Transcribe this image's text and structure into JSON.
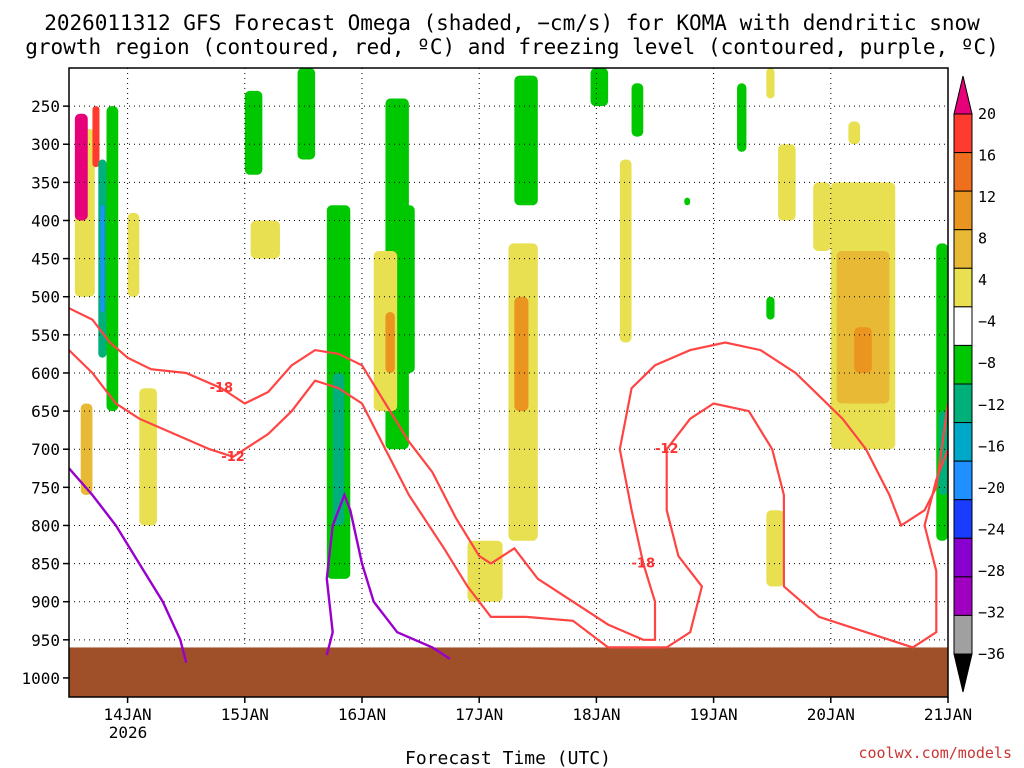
{
  "chart_data": {
    "type": "heatmap",
    "title_lines": [
      "2026011312 GFS Forecast Omega (shaded, −cm/s) for KOMA with dendritic snow",
      "growth region (contoured, red, ºC) and freezing level (contoured, purple, ºC)"
    ],
    "xlabel": "Forecast Time (UTC)",
    "x_ticks": [
      "14JAN",
      "15JAN",
      "16JAN",
      "17JAN",
      "18JAN",
      "19JAN",
      "20JAN",
      "21JAN"
    ],
    "x_year_label": "2026",
    "x_range_days": [
      13.5,
      21.0
    ],
    "y_ticks": [
      250,
      300,
      350,
      400,
      450,
      500,
      550,
      600,
      650,
      700,
      750,
      800,
      850,
      900,
      950,
      1000
    ],
    "y_range_hpa": [
      200,
      1025
    ],
    "credit": "coolwx.com/models",
    "colorbar": {
      "tick_labels": [
        "20",
        "16",
        "12",
        "8",
        "4",
        "−4",
        "−8",
        "−12",
        "−16",
        "−20",
        "−24",
        "−28",
        "−32",
        "−36"
      ],
      "colors": [
        "#e6007a",
        "#ff3b30",
        "#ee6f1e",
        "#e9951f",
        "#e8b934",
        "#e8e050",
        "#ffffff",
        "#00c800",
        "#00b07a",
        "#00a8c8",
        "#1e90ff",
        "#1a3cff",
        "#8a00d0",
        "#a000c0",
        "#a0a0a0",
        "#000000"
      ]
    },
    "contours": [
      {
        "level": "-18",
        "color": "#ff4444",
        "points": [
          [
            13.5,
            515
          ],
          [
            13.7,
            530
          ],
          [
            13.85,
            560
          ],
          [
            14.0,
            580
          ],
          [
            14.2,
            595
          ],
          [
            14.5,
            600
          ],
          [
            14.8,
            620
          ],
          [
            15.0,
            640
          ],
          [
            15.2,
            625
          ],
          [
            15.4,
            590
          ],
          [
            15.6,
            570
          ],
          [
            15.8,
            575
          ],
          [
            16.0,
            590
          ],
          [
            16.2,
            640
          ],
          [
            16.4,
            690
          ],
          [
            16.6,
            730
          ],
          [
            16.8,
            790
          ],
          [
            17.0,
            840
          ],
          [
            17.1,
            850
          ]
        ]
      },
      {
        "level": "-12",
        "color": "#ff4444",
        "points": [
          [
            13.5,
            570
          ],
          [
            13.7,
            600
          ],
          [
            13.9,
            640
          ],
          [
            14.1,
            660
          ],
          [
            14.4,
            680
          ],
          [
            14.7,
            700
          ],
          [
            14.9,
            710
          ],
          [
            15.2,
            680
          ],
          [
            15.4,
            650
          ],
          [
            15.6,
            610
          ],
          [
            15.8,
            620
          ],
          [
            16.0,
            640
          ],
          [
            16.2,
            700
          ],
          [
            16.4,
            760
          ],
          [
            16.7,
            830
          ],
          [
            16.9,
            880
          ],
          [
            17.1,
            920
          ],
          [
            17.4,
            920
          ]
        ]
      },
      {
        "level": "-18",
        "color": "#ff4444",
        "points": [
          [
            17.1,
            850
          ],
          [
            17.3,
            830
          ],
          [
            17.5,
            870
          ],
          [
            17.8,
            900
          ],
          [
            18.1,
            930
          ],
          [
            18.4,
            950
          ],
          [
            18.5,
            950
          ],
          [
            18.5,
            900
          ],
          [
            18.4,
            850
          ],
          [
            18.3,
            780
          ],
          [
            18.2,
            700
          ],
          [
            18.3,
            620
          ],
          [
            18.5,
            590
          ],
          [
            18.8,
            570
          ],
          [
            19.1,
            560
          ],
          [
            19.4,
            570
          ],
          [
            19.7,
            600
          ],
          [
            19.9,
            630
          ],
          [
            20.1,
            660
          ],
          [
            20.3,
            700
          ],
          [
            20.5,
            760
          ],
          [
            20.6,
            800
          ],
          [
            20.8,
            780
          ],
          [
            20.9,
            750
          ],
          [
            21.0,
            640
          ]
        ]
      },
      {
        "level": "-12",
        "color": "#ff4444",
        "points": [
          [
            17.4,
            920
          ],
          [
            17.8,
            925
          ],
          [
            18.1,
            960
          ],
          [
            18.6,
            960
          ],
          [
            18.8,
            940
          ],
          [
            18.9,
            880
          ],
          [
            18.7,
            840
          ],
          [
            18.6,
            780
          ],
          [
            18.6,
            700
          ],
          [
            18.8,
            660
          ],
          [
            19.0,
            640
          ],
          [
            19.3,
            650
          ],
          [
            19.5,
            700
          ],
          [
            19.6,
            760
          ],
          [
            19.6,
            820
          ],
          [
            19.6,
            880
          ],
          [
            19.9,
            920
          ],
          [
            20.3,
            940
          ],
          [
            20.7,
            960
          ],
          [
            20.9,
            940
          ],
          [
            20.9,
            860
          ],
          [
            20.8,
            800
          ],
          [
            20.9,
            740
          ],
          [
            21.0,
            700
          ]
        ]
      }
    ],
    "freezing_level": [
      {
        "points": [
          [
            13.5,
            725
          ],
          [
            13.7,
            760
          ],
          [
            13.9,
            800
          ],
          [
            14.1,
            850
          ],
          [
            14.3,
            900
          ],
          [
            14.45,
            950
          ],
          [
            14.5,
            980
          ]
        ]
      },
      {
        "points": [
          [
            15.7,
            970
          ],
          [
            15.75,
            940
          ],
          [
            15.7,
            870
          ],
          [
            15.75,
            800
          ],
          [
            15.85,
            760
          ],
          [
            15.9,
            780
          ],
          [
            16.0,
            850
          ],
          [
            16.1,
            900
          ],
          [
            16.3,
            940
          ],
          [
            16.6,
            960
          ],
          [
            16.75,
            975
          ]
        ]
      }
    ],
    "cells": [
      {
        "c": 5,
        "x0": 13.55,
        "x1": 13.72,
        "p0": 280,
        "p1": 500
      },
      {
        "c": 0,
        "x0": 13.55,
        "x1": 13.66,
        "p0": 260,
        "p1": 400
      },
      {
        "c": 1,
        "x0": 13.7,
        "x1": 13.76,
        "p0": 250,
        "p1": 330
      },
      {
        "c": 8,
        "x0": 13.75,
        "x1": 13.82,
        "p0": 320,
        "p1": 580
      },
      {
        "c": 10,
        "x0": 13.77,
        "x1": 13.8,
        "p0": 380,
        "p1": 520
      },
      {
        "c": 7,
        "x0": 13.82,
        "x1": 13.92,
        "p0": 250,
        "p1": 650
      },
      {
        "c": 4,
        "x0": 13.6,
        "x1": 13.7,
        "p0": 640,
        "p1": 760
      },
      {
        "c": 5,
        "x0": 14.0,
        "x1": 14.1,
        "p0": 390,
        "p1": 500
      },
      {
        "c": 5,
        "x0": 14.1,
        "x1": 14.25,
        "p0": 620,
        "p1": 800
      },
      {
        "c": 7,
        "x0": 15.0,
        "x1": 15.15,
        "p0": 230,
        "p1": 340
      },
      {
        "c": 5,
        "x0": 15.05,
        "x1": 15.3,
        "p0": 400,
        "p1": 450
      },
      {
        "c": 7,
        "x0": 15.45,
        "x1": 15.6,
        "p0": 200,
        "p1": 320
      },
      {
        "c": 7,
        "x0": 15.7,
        "x1": 15.9,
        "p0": 380,
        "p1": 870
      },
      {
        "c": 8,
        "x0": 15.75,
        "x1": 15.85,
        "p0": 600,
        "p1": 800
      },
      {
        "c": 7,
        "x0": 16.2,
        "x1": 16.4,
        "p0": 240,
        "p1": 700
      },
      {
        "c": 5,
        "x0": 16.1,
        "x1": 16.3,
        "p0": 440,
        "p1": 650
      },
      {
        "c": 3,
        "x0": 16.2,
        "x1": 16.28,
        "p0": 520,
        "p1": 600
      },
      {
        "c": 7,
        "x0": 16.35,
        "x1": 16.45,
        "p0": 380,
        "p1": 600
      },
      {
        "c": 7,
        "x0": 17.3,
        "x1": 17.5,
        "p0": 210,
        "p1": 380
      },
      {
        "c": 5,
        "x0": 17.25,
        "x1": 17.5,
        "p0": 430,
        "p1": 820
      },
      {
        "c": 3,
        "x0": 17.3,
        "x1": 17.42,
        "p0": 500,
        "p1": 650
      },
      {
        "c": 5,
        "x0": 16.9,
        "x1": 17.2,
        "p0": 820,
        "p1": 900
      },
      {
        "c": 7,
        "x0": 17.95,
        "x1": 18.1,
        "p0": 200,
        "p1": 250
      },
      {
        "c": 5,
        "x0": 18.2,
        "x1": 18.3,
        "p0": 320,
        "p1": 560
      },
      {
        "c": 7,
        "x0": 18.3,
        "x1": 18.4,
        "p0": 220,
        "p1": 290
      },
      {
        "c": 7,
        "x0": 18.75,
        "x1": 18.8,
        "p0": 370,
        "p1": 380
      },
      {
        "c": 7,
        "x0": 19.2,
        "x1": 19.28,
        "p0": 220,
        "p1": 310
      },
      {
        "c": 5,
        "x0": 19.45,
        "x1": 19.52,
        "p0": 200,
        "p1": 240
      },
      {
        "c": 5,
        "x0": 19.55,
        "x1": 19.7,
        "p0": 300,
        "p1": 400
      },
      {
        "c": 7,
        "x0": 19.45,
        "x1": 19.52,
        "p0": 500,
        "p1": 530
      },
      {
        "c": 5,
        "x0": 19.45,
        "x1": 19.6,
        "p0": 780,
        "p1": 880
      },
      {
        "c": 5,
        "x0": 19.85,
        "x1": 20.0,
        "p0": 350,
        "p1": 440
      },
      {
        "c": 5,
        "x0": 20.0,
        "x1": 20.55,
        "p0": 350,
        "p1": 700
      },
      {
        "c": 4,
        "x0": 20.05,
        "x1": 20.5,
        "p0": 440,
        "p1": 640
      },
      {
        "c": 3,
        "x0": 20.2,
        "x1": 20.35,
        "p0": 540,
        "p1": 600
      },
      {
        "c": 5,
        "x0": 20.15,
        "x1": 20.25,
        "p0": 270,
        "p1": 300
      },
      {
        "c": 7,
        "x0": 20.9,
        "x1": 21.0,
        "p0": 430,
        "p1": 820
      },
      {
        "c": 8,
        "x0": 20.92,
        "x1": 21.0,
        "p0": 650,
        "p1": 760
      }
    ],
    "ground": {
      "color": "#a05028",
      "p_top": 960
    }
  }
}
